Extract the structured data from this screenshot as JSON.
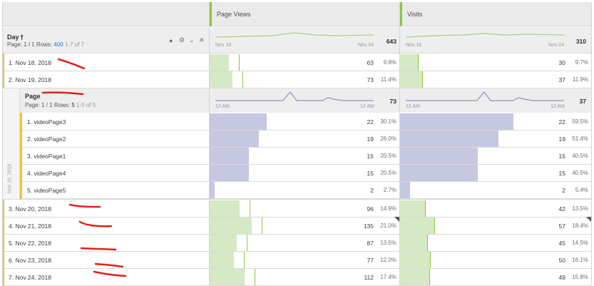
{
  "metrics": [
    {
      "name": "Page Views"
    },
    {
      "name": "Visits"
    }
  ],
  "day_dimension": {
    "title": "Day",
    "sort_icon": "arrow-up-icon",
    "page_label": "Page: 1 / 1  Rows:",
    "rows_count": "400",
    "range": "1-7 of 7",
    "axis_start": "Nov 18",
    "axis_end": "Nov 24",
    "total_page_views": "643",
    "total_visits": "310",
    "icons": [
      "info-icon",
      "gear-icon",
      "chevron-down-icon",
      "close-icon"
    ]
  },
  "day_rows_top": [
    {
      "label": "1.   Nov 18, 2018",
      "pv": "63",
      "pv_pct": "9.8%",
      "pv_share": 0.098,
      "v": "30",
      "v_pct": "9.7%",
      "v_share": 0.097
    },
    {
      "label": "2.   Nov 19, 2018",
      "pv": "73",
      "pv_pct": "11.4%",
      "pv_share": 0.114,
      "v": "37",
      "v_pct": "11.9%",
      "v_share": 0.119
    }
  ],
  "page_breakdown": {
    "title": "Page",
    "page_label": "Page: 1 / 1  Rows:",
    "rows_count": "5",
    "range": "1-5 of 5",
    "axis_start": "12 AM",
    "axis_end": "12 AM",
    "total_page_views": "73",
    "total_visits": "37",
    "side_label": "Nov 19, 2018",
    "rows": [
      {
        "label": "1.   videoPage3",
        "pv": "22",
        "pv_pct": "30.1%",
        "pv_share": 0.301,
        "v": "22",
        "v_pct": "59.5%",
        "v_share": 0.595
      },
      {
        "label": "2.   videoPage2",
        "pv": "19",
        "pv_pct": "26.0%",
        "pv_share": 0.26,
        "v": "19",
        "v_pct": "51.4%",
        "v_share": 0.514
      },
      {
        "label": "3.   videoPage1",
        "pv": "15",
        "pv_pct": "20.5%",
        "pv_share": 0.205,
        "v": "15",
        "v_pct": "40.5%",
        "v_share": 0.405
      },
      {
        "label": "4.   videoPage4",
        "pv": "15",
        "pv_pct": "20.5%",
        "pv_share": 0.205,
        "v": "15",
        "v_pct": "40.5%",
        "v_share": 0.405
      },
      {
        "label": "5.   videoPage5",
        "pv": "2",
        "pv_pct": "2.7%",
        "pv_share": 0.027,
        "v": "2",
        "v_pct": "5.4%",
        "v_share": 0.054
      }
    ]
  },
  "day_rows_bottom": [
    {
      "label": "3.   Nov 20, 2018",
      "pv": "96",
      "pv_pct": "14.9%",
      "pv_share": 0.149,
      "v": "42",
      "v_pct": "13.5%",
      "v_share": 0.135
    },
    {
      "label": "4.   Nov 21, 2018",
      "pv": "135",
      "pv_pct": "21.0%",
      "pv_share": 0.21,
      "v": "57",
      "v_pct": "18.4%",
      "v_share": 0.184
    },
    {
      "label": "5.   Nov 22, 2018",
      "pv": "87",
      "pv_pct": "13.5%",
      "pv_share": 0.135,
      "v": "45",
      "v_pct": "14.5%",
      "v_share": 0.145
    },
    {
      "label": "6.   Nov 23, 2018",
      "pv": "77",
      "pv_pct": "12.0%",
      "pv_share": 0.12,
      "v": "50",
      "v_pct": "16.1%",
      "v_share": 0.161
    },
    {
      "label": "7.   Nov 24, 2018",
      "pv": "112",
      "pv_pct": "17.4%",
      "pv_share": 0.174,
      "v": "49",
      "v_pct": "15.8%",
      "v_share": 0.158
    }
  ],
  "colors": {
    "green_bar": "#d5e9c5",
    "green_accent": "#8cc63f",
    "purple_bar": "#c6c8e2",
    "yellow_marker": "#f0c330",
    "annotation_red": "#e0201c"
  }
}
